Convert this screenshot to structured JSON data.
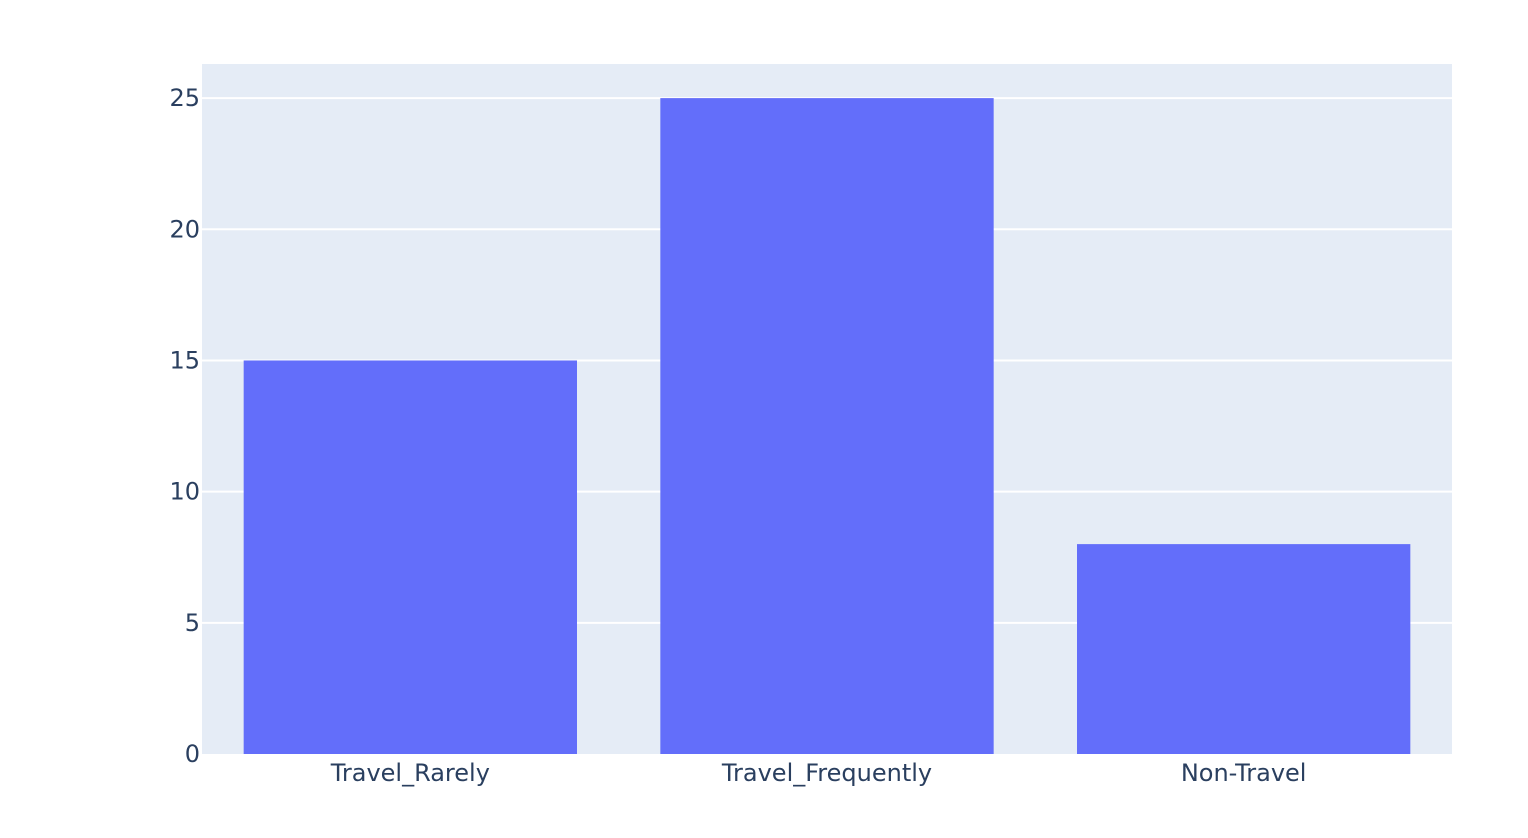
{
  "chart_data": {
    "type": "bar",
    "categories": [
      "Travel_Rarely",
      "Travel_Frequently",
      "Non-Travel"
    ],
    "values": [
      15,
      25,
      8
    ],
    "title": "",
    "xlabel": "",
    "ylabel": "",
    "ylim": [
      0,
      26.3
    ],
    "yticks": [
      0,
      5,
      10,
      15,
      20,
      25
    ],
    "grid": true,
    "bar_color": "#636efa",
    "plot_background": "#e5ecf6",
    "text_color": "#2a3f5f"
  }
}
